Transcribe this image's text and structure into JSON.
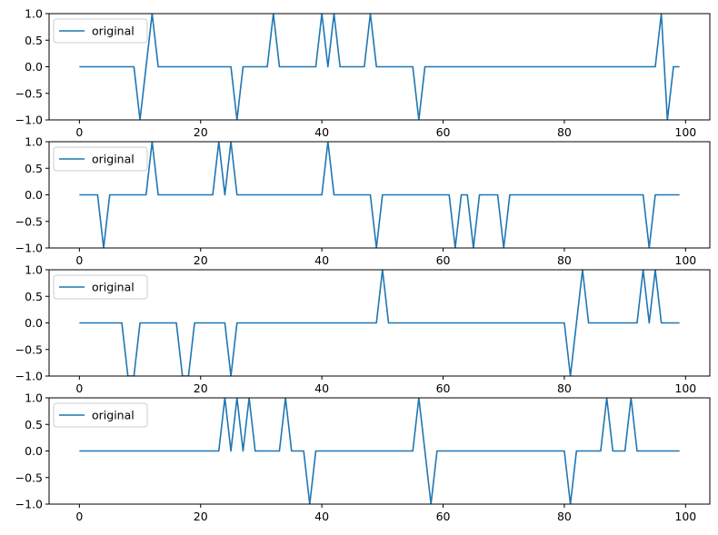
{
  "chart_data": [
    {
      "type": "line",
      "title": "",
      "xlabel": "",
      "ylabel": "",
      "xlim": [
        -5,
        104
      ],
      "ylim": [
        -1.0,
        1.0
      ],
      "xticks": [
        0,
        20,
        40,
        60,
        80,
        100
      ],
      "yticks": [
        -1.0,
        -0.5,
        0.0,
        0.5,
        1.0
      ],
      "ytick_labels": [
        "−1.0",
        "−0.5",
        "0.0",
        "0.5",
        "1.0"
      ],
      "grid": false,
      "legend": "upper-left",
      "series": [
        {
          "name": "original",
          "color": "#1f77b4",
          "events": [
            [
              10,
              -1
            ],
            [
              12,
              1
            ],
            [
              26,
              -1
            ],
            [
              32,
              1
            ],
            [
              40,
              1
            ],
            [
              42,
              1
            ],
            [
              48,
              1
            ],
            [
              56,
              -1
            ],
            [
              96,
              1
            ],
            [
              97,
              -1
            ]
          ]
        }
      ]
    },
    {
      "type": "line",
      "title": "",
      "xlabel": "",
      "ylabel": "",
      "xlim": [
        -5,
        104
      ],
      "ylim": [
        -1.0,
        1.0
      ],
      "xticks": [
        0,
        20,
        40,
        60,
        80,
        100
      ],
      "yticks": [
        -1.0,
        -0.5,
        0.0,
        0.5,
        1.0
      ],
      "ytick_labels": [
        "−1.0",
        "−0.5",
        "0.0",
        "0.5",
        "1.0"
      ],
      "grid": false,
      "legend": "upper-left",
      "series": [
        {
          "name": "original",
          "color": "#1f77b4",
          "events": [
            [
              4,
              -1
            ],
            [
              12,
              1
            ],
            [
              23,
              1
            ],
            [
              25,
              1
            ],
            [
              41,
              1
            ],
            [
              49,
              -1
            ],
            [
              62,
              -1
            ],
            [
              65,
              -1
            ],
            [
              70,
              -1
            ],
            [
              94,
              -1
            ]
          ]
        }
      ]
    },
    {
      "type": "line",
      "title": "",
      "xlabel": "",
      "ylabel": "",
      "xlim": [
        -5,
        104
      ],
      "ylim": [
        -1.0,
        1.0
      ],
      "xticks": [
        0,
        20,
        40,
        60,
        80,
        100
      ],
      "yticks": [
        -1.0,
        -0.5,
        0.0,
        0.5,
        1.0
      ],
      "ytick_labels": [
        "−1.0",
        "−0.5",
        "0.0",
        "0.5",
        "1.0"
      ],
      "grid": false,
      "legend": "upper-left",
      "series": [
        {
          "name": "original",
          "color": "#1f77b4",
          "events": [
            [
              8,
              -1
            ],
            [
              9,
              -1
            ],
            [
              17,
              -1
            ],
            [
              18,
              -1
            ],
            [
              25,
              -1
            ],
            [
              50,
              1
            ],
            [
              81,
              -1
            ],
            [
              83,
              1
            ],
            [
              93,
              1
            ],
            [
              95,
              1
            ]
          ]
        }
      ]
    },
    {
      "type": "line",
      "title": "",
      "xlabel": "",
      "ylabel": "",
      "xlim": [
        -5,
        104
      ],
      "ylim": [
        -1.0,
        1.0
      ],
      "xticks": [
        0,
        20,
        40,
        60,
        80,
        100
      ],
      "yticks": [
        -1.0,
        -0.5,
        0.0,
        0.5,
        1.0
      ],
      "ytick_labels": [
        "−1.0",
        "−0.5",
        "0.0",
        "0.5",
        "1.0"
      ],
      "grid": false,
      "legend": "upper-left",
      "series": [
        {
          "name": "original",
          "color": "#1f77b4",
          "events": [
            [
              24,
              1
            ],
            [
              26,
              1
            ],
            [
              28,
              1
            ],
            [
              34,
              1
            ],
            [
              38,
              -1
            ],
            [
              56,
              1
            ],
            [
              58,
              -1
            ],
            [
              81,
              -1
            ],
            [
              87,
              1
            ],
            [
              91,
              1
            ]
          ]
        }
      ]
    }
  ]
}
